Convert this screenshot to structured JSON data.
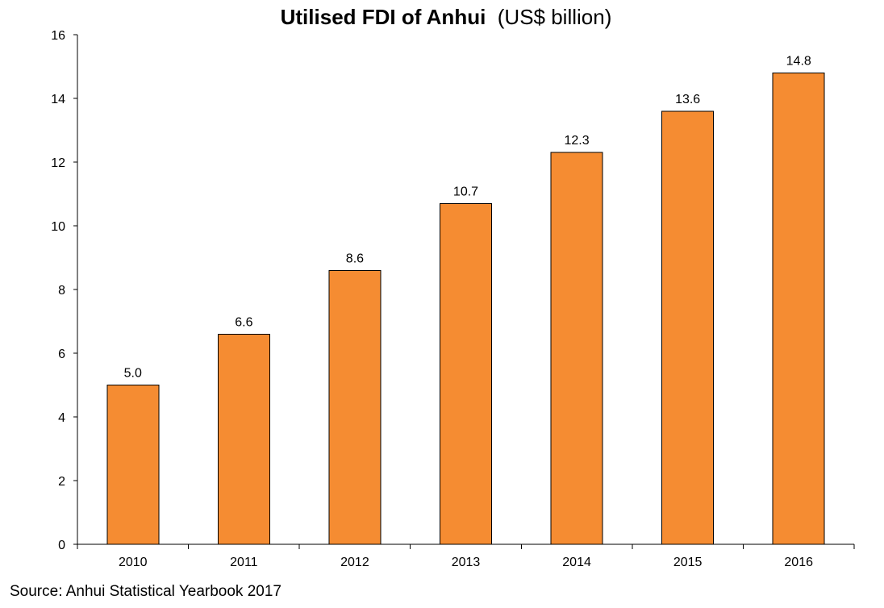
{
  "chart_data": {
    "type": "bar",
    "title": "Utilised FDI of Anhui",
    "title_unit": "(US$ billion)",
    "categories": [
      "2010",
      "2011",
      "2012",
      "2013",
      "2014",
      "2015",
      "2016"
    ],
    "values": [
      5.0,
      6.6,
      8.6,
      10.7,
      12.3,
      13.6,
      14.8
    ],
    "data_labels": [
      "5.0",
      "6.6",
      "8.6",
      "10.7",
      "12.3",
      "13.6",
      "14.8"
    ],
    "xlabel": "",
    "ylabel": "",
    "ylim": [
      0,
      16
    ],
    "yticks": [
      0,
      2,
      4,
      6,
      8,
      10,
      12,
      14,
      16
    ],
    "grid": false,
    "legend": "none",
    "bar_color": "#F58C32",
    "source": "Source: Anhui Statistical Yearbook 2017"
  }
}
